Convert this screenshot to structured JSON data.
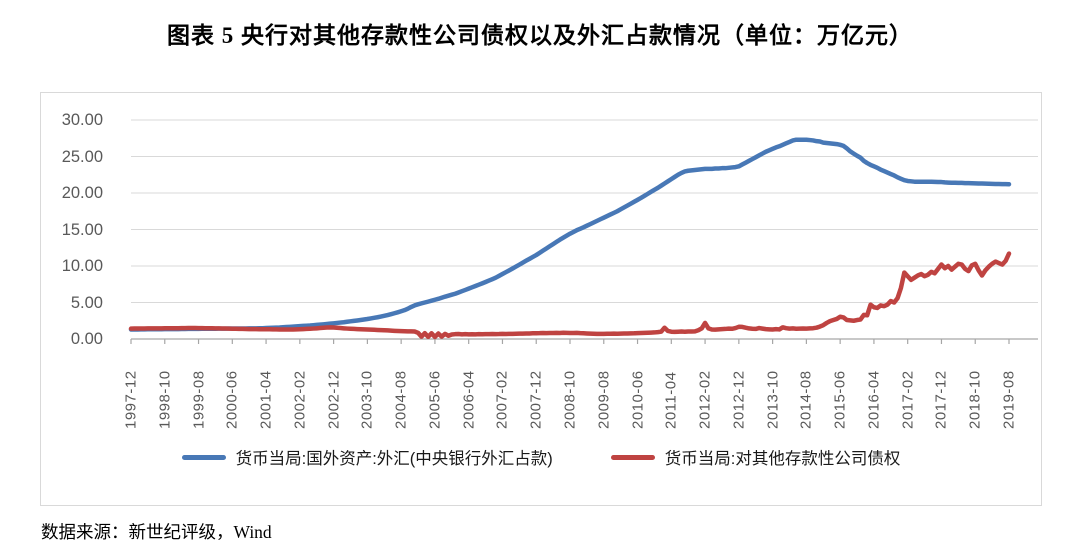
{
  "title": "图表 5  央行对其他存款性公司债权以及外汇占款情况（单位：万亿元）",
  "source_note": "数据来源：新世纪评级，Wind",
  "colors": {
    "grid": "#d9d9d9",
    "axis": "#a6a6a6",
    "tick_text": "#595959",
    "series_fx_blue": "#4878b6",
    "series_claims_red": "#bf4341"
  },
  "chart_data": {
    "type": "line",
    "unit": "万亿元",
    "title": "央行对其他存款性公司债权以及外汇占款情况",
    "x_start": "1997-12",
    "x_step_months": 1,
    "x_tick_every": 10,
    "x_tick_labels": [
      "1997-12",
      "1998-10",
      "1999-08",
      "2000-06",
      "2001-04",
      "2002-02",
      "2002-12",
      "2003-10",
      "2004-08",
      "2005-06",
      "2006-04",
      "2007-02",
      "2007-12",
      "2008-10",
      "2009-08",
      "2010-06",
      "2011-04",
      "2012-02",
      "2012-12",
      "2013-10",
      "2014-08",
      "2015-06",
      "2016-04",
      "2017-02",
      "2017-12",
      "2018-10",
      "2019-08"
    ],
    "y_tick_labels": [
      "0.00",
      "5.00",
      "10.00",
      "15.00",
      "20.00",
      "25.00",
      "30.00"
    ],
    "ylim": [
      0,
      30
    ],
    "grid": "horizontal",
    "legend_position": "bottom",
    "series": [
      {
        "name": "货币当局:国外资产:外汇(中央银行外汇占款)",
        "color": "#4878b6",
        "values": [
          1.3,
          1.31,
          1.31,
          1.32,
          1.32,
          1.33,
          1.33,
          1.34,
          1.34,
          1.34,
          1.35,
          1.35,
          1.35,
          1.36,
          1.36,
          1.37,
          1.37,
          1.38,
          1.38,
          1.39,
          1.39,
          1.4,
          1.4,
          1.41,
          1.41,
          1.41,
          1.42,
          1.42,
          1.42,
          1.43,
          1.43,
          1.43,
          1.44,
          1.44,
          1.44,
          1.45,
          1.45,
          1.46,
          1.47,
          1.48,
          1.5,
          1.52,
          1.54,
          1.56,
          1.58,
          1.61,
          1.64,
          1.67,
          1.7,
          1.73,
          1.76,
          1.79,
          1.82,
          1.85,
          1.89,
          1.93,
          1.97,
          2.01,
          2.05,
          2.1,
          2.15,
          2.2,
          2.25,
          2.3,
          2.36,
          2.42,
          2.48,
          2.54,
          2.6,
          2.67,
          2.74,
          2.82,
          2.9,
          2.98,
          3.07,
          3.17,
          3.28,
          3.4,
          3.53,
          3.66,
          3.8,
          3.95,
          4.15,
          4.4,
          4.6,
          4.75,
          4.88,
          5.0,
          5.12,
          5.25,
          5.38,
          5.5,
          5.65,
          5.8,
          5.93,
          6.07,
          6.2,
          6.37,
          6.55,
          6.72,
          6.9,
          7.08,
          7.26,
          7.44,
          7.62,
          7.81,
          8.0,
          8.2,
          8.4,
          8.65,
          8.9,
          9.15,
          9.4,
          9.66,
          9.92,
          10.18,
          10.45,
          10.72,
          10.98,
          11.24,
          11.5,
          11.8,
          12.1,
          12.4,
          12.7,
          13.0,
          13.3,
          13.6,
          13.88,
          14.15,
          14.42,
          14.66,
          14.9,
          15.1,
          15.3,
          15.52,
          15.74,
          15.96,
          16.18,
          16.4,
          16.62,
          16.84,
          17.06,
          17.28,
          17.5,
          17.76,
          18.02,
          18.28,
          18.54,
          18.8,
          19.06,
          19.32,
          19.6,
          19.88,
          20.16,
          20.44,
          20.7,
          21.0,
          21.3,
          21.6,
          21.9,
          22.2,
          22.5,
          22.75,
          22.95,
          23.05,
          23.1,
          23.15,
          23.2,
          23.25,
          23.3,
          23.3,
          23.3,
          23.35,
          23.35,
          23.4,
          23.4,
          23.45,
          23.5,
          23.55,
          23.65,
          23.9,
          24.15,
          24.4,
          24.65,
          24.9,
          25.15,
          25.4,
          25.65,
          25.85,
          26.05,
          26.25,
          26.4,
          26.6,
          26.8,
          27.0,
          27.2,
          27.3,
          27.3,
          27.3,
          27.3,
          27.25,
          27.2,
          27.1,
          27.05,
          26.9,
          26.85,
          26.8,
          26.75,
          26.7,
          26.6,
          26.45,
          26.1,
          25.7,
          25.4,
          25.1,
          24.85,
          24.4,
          24.1,
          23.85,
          23.65,
          23.45,
          23.2,
          23.0,
          22.8,
          22.6,
          22.4,
          22.15,
          21.95,
          21.75,
          21.65,
          21.6,
          21.55,
          21.55,
          21.55,
          21.55,
          21.55,
          21.55,
          21.53,
          21.5,
          21.5,
          21.45,
          21.42,
          21.4,
          21.4,
          21.38,
          21.38,
          21.36,
          21.35,
          21.33,
          21.32,
          21.3,
          21.3,
          21.28,
          21.26,
          21.25,
          21.24,
          21.23,
          21.22,
          21.21,
          21.2
        ]
      },
      {
        "name": "货币当局:对其他存款性公司债权",
        "color": "#bf4341",
        "values": [
          1.42,
          1.43,
          1.43,
          1.44,
          1.44,
          1.45,
          1.45,
          1.46,
          1.46,
          1.46,
          1.47,
          1.47,
          1.48,
          1.48,
          1.48,
          1.49,
          1.49,
          1.5,
          1.5,
          1.5,
          1.49,
          1.49,
          1.48,
          1.48,
          1.47,
          1.46,
          1.45,
          1.44,
          1.43,
          1.42,
          1.41,
          1.4,
          1.39,
          1.38,
          1.37,
          1.36,
          1.35,
          1.35,
          1.34,
          1.34,
          1.33,
          1.33,
          1.32,
          1.32,
          1.31,
          1.31,
          1.3,
          1.3,
          1.3,
          1.32,
          1.34,
          1.36,
          1.38,
          1.4,
          1.43,
          1.46,
          1.5,
          1.54,
          1.58,
          1.6,
          1.58,
          1.54,
          1.5,
          1.46,
          1.43,
          1.4,
          1.38,
          1.36,
          1.34,
          1.32,
          1.3,
          1.28,
          1.26,
          1.24,
          1.22,
          1.2,
          1.18,
          1.15,
          1.12,
          1.1,
          1.08,
          1.06,
          1.05,
          1.04,
          1.03,
          0.85,
          0.32,
          0.8,
          0.3,
          0.78,
          0.28,
          0.75,
          0.33,
          0.7,
          0.45,
          0.62,
          0.66,
          0.68,
          0.64,
          0.66,
          0.63,
          0.65,
          0.64,
          0.66,
          0.65,
          0.67,
          0.66,
          0.68,
          0.67,
          0.68,
          0.7,
          0.69,
          0.71,
          0.7,
          0.72,
          0.74,
          0.73,
          0.75,
          0.76,
          0.78,
          0.79,
          0.8,
          0.82,
          0.81,
          0.83,
          0.82,
          0.84,
          0.83,
          0.85,
          0.84,
          0.83,
          0.82,
          0.84,
          0.8,
          0.78,
          0.76,
          0.74,
          0.72,
          0.71,
          0.7,
          0.71,
          0.72,
          0.72,
          0.73,
          0.72,
          0.74,
          0.76,
          0.75,
          0.77,
          0.78,
          0.8,
          0.82,
          0.84,
          0.86,
          0.88,
          0.9,
          0.94,
          1.0,
          1.55,
          1.1,
          1.0,
          0.98,
          1.0,
          1.02,
          1.0,
          1.03,
          1.02,
          1.05,
          1.2,
          1.45,
          2.2,
          1.45,
          1.3,
          1.28,
          1.32,
          1.35,
          1.38,
          1.42,
          1.4,
          1.5,
          1.67,
          1.66,
          1.55,
          1.45,
          1.4,
          1.38,
          1.5,
          1.42,
          1.35,
          1.32,
          1.3,
          1.35,
          1.31,
          1.6,
          1.48,
          1.42,
          1.45,
          1.4,
          1.42,
          1.44,
          1.42,
          1.45,
          1.48,
          1.55,
          1.7,
          1.9,
          2.2,
          2.45,
          2.6,
          2.75,
          3.05,
          2.95,
          2.6,
          2.55,
          2.5,
          2.6,
          2.66,
          3.3,
          3.25,
          4.7,
          4.35,
          4.25,
          4.6,
          4.5,
          4.7,
          5.2,
          5.0,
          5.6,
          7.0,
          9.1,
          8.6,
          8.1,
          8.4,
          8.7,
          8.9,
          8.6,
          8.8,
          9.2,
          9.0,
          9.6,
          10.2,
          9.7,
          10.0,
          9.5,
          9.9,
          10.3,
          10.2,
          9.6,
          9.3,
          10.1,
          10.3,
          9.4,
          8.7,
          9.4,
          9.9,
          10.3,
          10.6,
          10.4,
          10.2,
          10.7,
          11.7
        ]
      }
    ]
  }
}
